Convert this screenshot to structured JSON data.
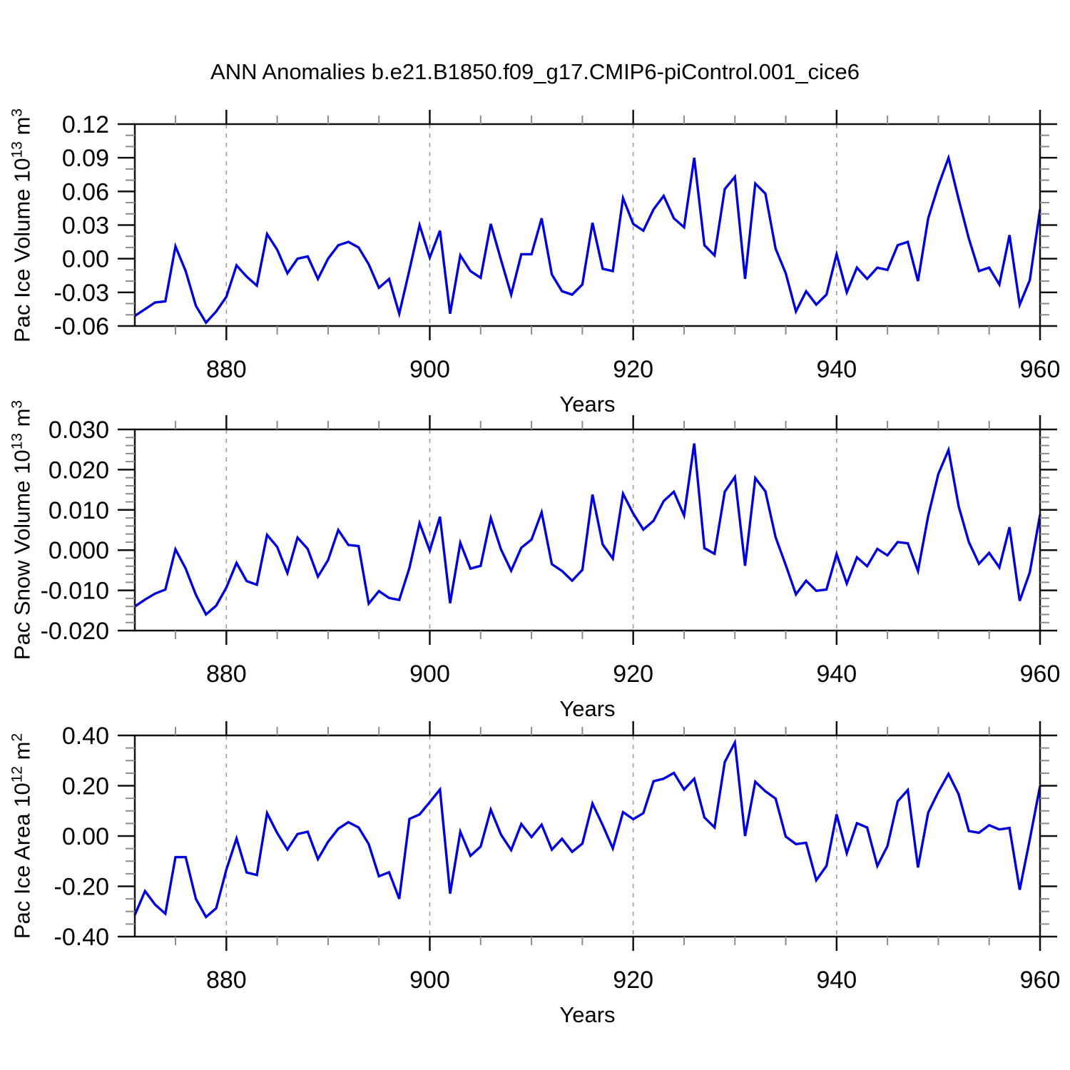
{
  "title": "ANN Anomalies b.e21.B1850.f09_g17.CMIP6-piControl.001_cice6",
  "colors": {
    "line": "#0000dd",
    "frame": "#111111",
    "grid": "#999999",
    "minor_tick": "#8c8c8c",
    "text": "#000000"
  },
  "chart_data": [
    {
      "type": "line",
      "ylabel": "Pac Ice Volume 10^13 m^3",
      "ylabel_parts": {
        "prefix": "Pac Ice Volume 10",
        "exponent": "13",
        "unit": " m",
        "unit_exponent": "3"
      },
      "xlabel": "Years",
      "xlim": [
        871,
        960
      ],
      "ylim": [
        -0.06,
        0.12
      ],
      "xtick_values": [
        880,
        900,
        920,
        940,
        960
      ],
      "xtick_labels": [
        "880",
        "900",
        "920",
        "940",
        "960"
      ],
      "x_minor_ticks": [
        875,
        885,
        890,
        895,
        905,
        910,
        915,
        925,
        930,
        935,
        945,
        950,
        955
      ],
      "x_gridlines": [
        880,
        900,
        920,
        940
      ],
      "ytick_values": [
        0.12,
        0.09,
        0.06,
        0.03,
        0.0,
        -0.03,
        -0.06
      ],
      "ytick_labels": [
        "0.12",
        "0.09",
        "0.06",
        "0.03",
        "0.00",
        "-0.03",
        "-0.06"
      ],
      "y_minor_ticks": [
        -0.05,
        -0.04,
        -0.02,
        -0.01,
        0.01,
        0.02,
        0.04,
        0.05,
        0.07,
        0.08,
        0.1,
        0.11
      ],
      "x": [
        871,
        872,
        873,
        874,
        875,
        876,
        877,
        878,
        879,
        880,
        881,
        882,
        883,
        884,
        885,
        886,
        887,
        888,
        889,
        890,
        891,
        892,
        893,
        894,
        895,
        896,
        897,
        898,
        899,
        900,
        901,
        902,
        903,
        904,
        905,
        906,
        907,
        908,
        909,
        910,
        911,
        912,
        913,
        914,
        915,
        916,
        917,
        918,
        919,
        920,
        921,
        922,
        923,
        924,
        925,
        926,
        927,
        928,
        929,
        930,
        931,
        932,
        933,
        934,
        935,
        936,
        937,
        938,
        939,
        940,
        941,
        942,
        943,
        944,
        945,
        946,
        947,
        948,
        949,
        950,
        951,
        952,
        953,
        954,
        955,
        956,
        957,
        958,
        959,
        960
      ],
      "values": [
        -0.051,
        -0.045,
        -0.039,
        -0.038,
        0.011,
        -0.011,
        -0.042,
        -0.057,
        -0.047,
        -0.034,
        -0.006,
        -0.016,
        -0.024,
        0.022,
        0.008,
        -0.013,
        0.0,
        0.002,
        -0.018,
        0.0,
        0.012,
        0.015,
        0.01,
        -0.005,
        -0.026,
        -0.018,
        -0.049,
        -0.01,
        0.03,
        0.001,
        0.025,
        -0.049,
        0.003,
        -0.011,
        -0.017,
        0.031,
        -0.001,
        -0.032,
        0.004,
        0.004,
        0.036,
        -0.014,
        -0.029,
        -0.032,
        -0.023,
        0.032,
        -0.009,
        -0.011,
        0.054,
        0.031,
        0.025,
        0.044,
        0.056,
        0.036,
        0.028,
        0.09,
        0.012,
        0.003,
        0.062,
        0.073,
        -0.018,
        0.067,
        0.058,
        0.009,
        -0.013,
        -0.047,
        -0.029,
        -0.041,
        -0.032,
        0.004,
        -0.03,
        -0.008,
        -0.018,
        -0.008,
        -0.01,
        0.012,
        0.015,
        -0.02,
        0.036,
        0.065,
        0.09,
        0.053,
        0.018,
        -0.011,
        -0.008,
        -0.023,
        0.021,
        -0.041,
        -0.019,
        0.044
      ]
    },
    {
      "type": "line",
      "ylabel": "Pac Snow Volume 10^13 m^3",
      "ylabel_parts": {
        "prefix": "Pac Snow Volume 10",
        "exponent": "13",
        "unit": " m",
        "unit_exponent": "3"
      },
      "xlabel": "Years",
      "xlim": [
        871,
        960
      ],
      "ylim": [
        -0.02,
        0.03
      ],
      "xtick_values": [
        880,
        900,
        920,
        940,
        960
      ],
      "xtick_labels": [
        "880",
        "900",
        "920",
        "940",
        "960"
      ],
      "x_minor_ticks": [
        875,
        885,
        890,
        895,
        905,
        910,
        915,
        925,
        930,
        935,
        945,
        950,
        955
      ],
      "x_gridlines": [
        880,
        900,
        920,
        940
      ],
      "ytick_values": [
        0.03,
        0.02,
        0.01,
        0.0,
        -0.01,
        -0.02
      ],
      "ytick_labels": [
        "0.030",
        "0.020",
        "0.010",
        "0.000",
        "-0.010",
        "-0.020"
      ],
      "y_minor_ticks": [
        -0.018,
        -0.016,
        -0.014,
        -0.012,
        -0.008,
        -0.006,
        -0.004,
        -0.002,
        0.002,
        0.004,
        0.006,
        0.008,
        0.012,
        0.014,
        0.016,
        0.018,
        0.022,
        0.024,
        0.026,
        0.028
      ],
      "x": [
        871,
        872,
        873,
        874,
        875,
        876,
        877,
        878,
        879,
        880,
        881,
        882,
        883,
        884,
        885,
        886,
        887,
        888,
        889,
        890,
        891,
        892,
        893,
        894,
        895,
        896,
        897,
        898,
        899,
        900,
        901,
        902,
        903,
        904,
        905,
        906,
        907,
        908,
        909,
        910,
        911,
        912,
        913,
        914,
        915,
        916,
        917,
        918,
        919,
        920,
        921,
        922,
        923,
        924,
        925,
        926,
        927,
        928,
        929,
        930,
        931,
        932,
        933,
        934,
        935,
        936,
        937,
        938,
        939,
        940,
        941,
        942,
        943,
        944,
        945,
        946,
        947,
        948,
        949,
        950,
        951,
        952,
        953,
        954,
        955,
        956,
        957,
        958,
        959,
        960
      ],
      "values": [
        -0.014,
        -0.0123,
        -0.0108,
        -0.0098,
        0.0002,
        -0.0046,
        -0.0111,
        -0.016,
        -0.0138,
        -0.0093,
        -0.0032,
        -0.0077,
        -0.0086,
        0.0038,
        0.0008,
        -0.0057,
        0.0031,
        0.0003,
        -0.0066,
        -0.0025,
        0.005,
        0.0013,
        0.001,
        -0.0133,
        -0.0102,
        -0.0119,
        -0.0124,
        -0.0044,
        0.0067,
        -0.0001,
        0.0083,
        -0.0132,
        0.0018,
        -0.0046,
        -0.0039,
        0.008,
        0.0002,
        -0.0051,
        0.0006,
        0.0026,
        0.0094,
        -0.0035,
        -0.0052,
        -0.0076,
        -0.0049,
        0.0138,
        0.0014,
        -0.0021,
        0.014,
        0.0091,
        0.0051,
        0.0073,
        0.0122,
        0.0145,
        0.0086,
        0.0265,
        0.0005,
        -0.0009,
        0.0145,
        0.0182,
        -0.0039,
        0.0179,
        0.0146,
        0.0032,
        -0.0037,
        -0.011,
        -0.0076,
        -0.0101,
        -0.0098,
        -0.001,
        -0.0083,
        -0.0018,
        -0.004,
        0.0003,
        -0.0013,
        0.002,
        0.0017,
        -0.0052,
        0.0085,
        0.0189,
        0.0249,
        0.0109,
        0.002,
        -0.0034,
        -0.0007,
        -0.0043,
        0.0057,
        -0.0126,
        -0.0055,
        0.0088
      ]
    },
    {
      "type": "line",
      "ylabel": "Pac Ice Area 10^12 m^2",
      "ylabel_parts": {
        "prefix": "Pac Ice Area 10",
        "exponent": "12",
        "unit": " m",
        "unit_exponent": "2"
      },
      "xlabel": "Years",
      "xlim": [
        871,
        960
      ],
      "ylim": [
        -0.4,
        0.4
      ],
      "xtick_values": [
        880,
        900,
        920,
        940,
        960
      ],
      "xtick_labels": [
        "880",
        "900",
        "920",
        "940",
        "960"
      ],
      "x_minor_ticks": [
        875,
        885,
        890,
        895,
        905,
        910,
        915,
        925,
        930,
        935,
        945,
        950,
        955
      ],
      "x_gridlines": [
        880,
        900,
        920,
        940
      ],
      "ytick_values": [
        0.4,
        0.2,
        0.0,
        -0.2,
        -0.4
      ],
      "ytick_labels": [
        "0.40",
        "0.20",
        "0.00",
        "-0.20",
        "-0.40"
      ],
      "y_minor_ticks": [
        -0.35,
        -0.3,
        -0.25,
        -0.15,
        -0.1,
        -0.05,
        0.05,
        0.1,
        0.15,
        0.25,
        0.3,
        0.35
      ],
      "x": [
        871,
        872,
        873,
        874,
        875,
        876,
        877,
        878,
        879,
        880,
        881,
        882,
        883,
        884,
        885,
        886,
        887,
        888,
        889,
        890,
        891,
        892,
        893,
        894,
        895,
        896,
        897,
        898,
        899,
        900,
        901,
        902,
        903,
        904,
        905,
        906,
        907,
        908,
        909,
        910,
        911,
        912,
        913,
        914,
        915,
        916,
        917,
        918,
        919,
        920,
        921,
        922,
        923,
        924,
        925,
        926,
        927,
        928,
        929,
        930,
        931,
        932,
        933,
        934,
        935,
        936,
        937,
        938,
        939,
        940,
        941,
        942,
        943,
        944,
        945,
        946,
        947,
        948,
        949,
        950,
        951,
        952,
        953,
        954,
        955,
        956,
        957,
        958,
        959,
        960
      ],
      "values": [
        -0.314,
        -0.219,
        -0.273,
        -0.309,
        -0.084,
        -0.084,
        -0.25,
        -0.322,
        -0.287,
        -0.134,
        -0.01,
        -0.145,
        -0.155,
        0.091,
        0.012,
        -0.054,
        0.008,
        0.017,
        -0.092,
        -0.023,
        0.029,
        0.055,
        0.034,
        -0.032,
        -0.16,
        -0.144,
        -0.25,
        0.068,
        0.086,
        0.135,
        0.185,
        -0.229,
        0.017,
        -0.079,
        -0.042,
        0.105,
        0.006,
        -0.056,
        0.048,
        -0.004,
        0.045,
        -0.054,
        -0.011,
        -0.063,
        -0.03,
        0.129,
        0.043,
        -0.049,
        0.095,
        0.067,
        0.091,
        0.218,
        0.228,
        0.251,
        0.185,
        0.228,
        0.074,
        0.034,
        0.294,
        0.372,
        0.0,
        0.216,
        0.178,
        0.149,
        -0.002,
        -0.032,
        -0.027,
        -0.176,
        -0.119,
        0.086,
        -0.068,
        0.051,
        0.034,
        -0.119,
        -0.04,
        0.138,
        0.183,
        -0.125,
        0.093,
        0.175,
        0.247,
        0.166,
        0.02,
        0.013,
        0.043,
        0.026,
        0.032,
        -0.214,
        -0.013,
        0.199
      ]
    }
  ]
}
